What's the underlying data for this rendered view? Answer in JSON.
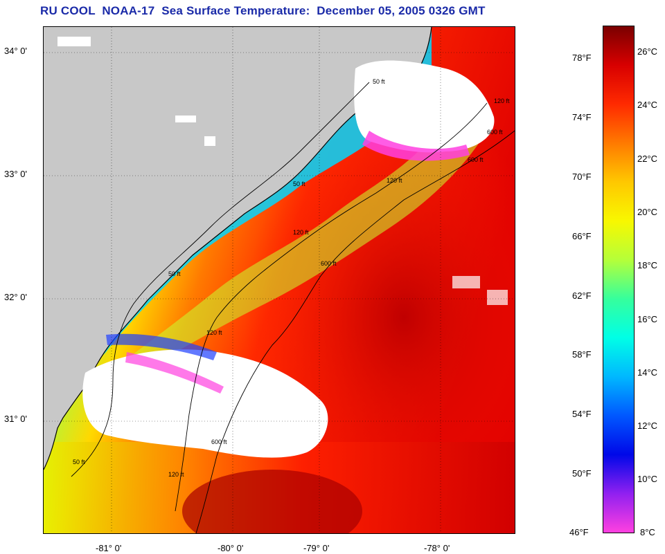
{
  "title": "RU COOL  NOAA-17  Sea Surface Temperature:  December 05, 2005 0326 GMT",
  "map": {
    "lat_labels": [
      "34° 0'",
      "33° 0'",
      "32° 0'",
      "31° 0'"
    ],
    "lon_labels": [
      "-81° 0'",
      "-80° 0'",
      "-79° 0'",
      "-78° 0'"
    ],
    "contour_labels": [
      "50 ft",
      "50 ft",
      "50 ft",
      "50 ft",
      "120 ft",
      "120 ft",
      "120 ft",
      "120 ft",
      "120 ft",
      "600 ft",
      "600 ft",
      "600 ft",
      "600 ft"
    ],
    "colors": {
      "land": "#c8c8c8",
      "cloud": "#ffffff",
      "coastline": "#000000",
      "contour": "#000000",
      "grid": "#000000"
    }
  },
  "colorbar": {
    "fahrenheit_labels": [
      "78°F",
      "74°F",
      "70°F",
      "66°F",
      "62°F",
      "58°F",
      "54°F",
      "50°F",
      "46°F"
    ],
    "celsius_labels": [
      "26°C",
      "24°C",
      "22°C",
      "20°C",
      "18°C",
      "16°C",
      "14°C",
      "12°C",
      "10°C",
      "8°C"
    ],
    "stops": [
      {
        "color": "#7a0000"
      },
      {
        "color": "#d80000"
      },
      {
        "color": "#ff2a00"
      },
      {
        "color": "#ff7a00"
      },
      {
        "color": "#ffc800"
      },
      {
        "color": "#f8f800"
      },
      {
        "color": "#b4ff3a"
      },
      {
        "color": "#36ff9c"
      },
      {
        "color": "#00ffe6"
      },
      {
        "color": "#00b8ff"
      },
      {
        "color": "#0058ff"
      },
      {
        "color": "#0008e8"
      },
      {
        "color": "#9020f0"
      },
      {
        "color": "#ff40e0"
      }
    ]
  }
}
